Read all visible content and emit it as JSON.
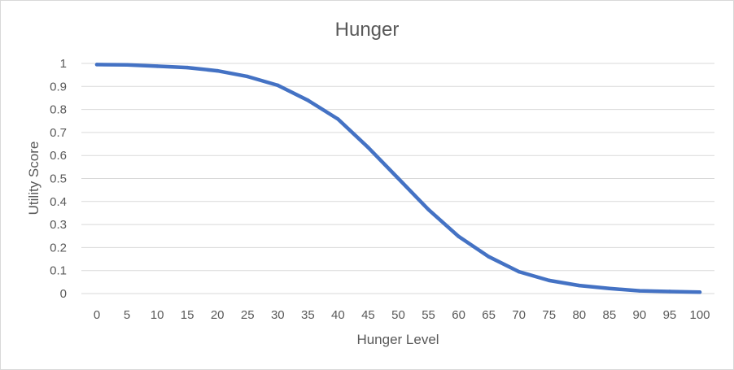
{
  "chart_data": {
    "type": "line",
    "title": "Hunger",
    "xlabel": "Hunger Level",
    "ylabel": "Utility Score",
    "x": [
      0,
      5,
      10,
      15,
      20,
      25,
      30,
      35,
      40,
      45,
      50,
      55,
      60,
      65,
      70,
      75,
      80,
      85,
      90,
      95,
      100
    ],
    "x_tick_labels": [
      "0",
      "5",
      "10",
      "15",
      "20",
      "25",
      "30",
      "35",
      "40",
      "45",
      "50",
      "55",
      "60",
      "65",
      "70",
      "75",
      "80",
      "85",
      "90",
      "95",
      "100"
    ],
    "y_ticks": [
      0,
      0.1,
      0.2,
      0.3,
      0.4,
      0.5,
      0.6,
      0.7,
      0.8,
      0.9,
      1
    ],
    "y_tick_labels": [
      "0",
      "0.1",
      "0.2",
      "0.3",
      "0.4",
      "0.5",
      "0.6",
      "0.7",
      "0.8",
      "0.9",
      "1"
    ],
    "ylim": [
      0,
      1
    ],
    "grid": true,
    "legend": "none",
    "series": [
      {
        "color": "#4472c4",
        "values": [
          0.995,
          0.994,
          0.988,
          0.982,
          0.968,
          0.943,
          0.905,
          0.84,
          0.758,
          0.635,
          0.5,
          0.365,
          0.248,
          0.16,
          0.095,
          0.057,
          0.035,
          0.022,
          0.012,
          0.009,
          0.006
        ]
      }
    ]
  }
}
